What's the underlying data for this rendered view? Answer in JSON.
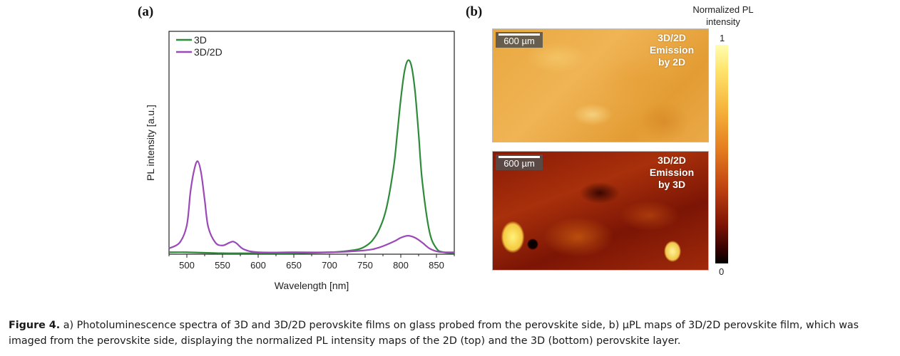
{
  "panel_a": {
    "label": "(a)",
    "chart_data": {
      "type": "line",
      "xlabel": "Wavelength [nm]",
      "ylabel": "PL intensity [a.u.]",
      "xlim": [
        475,
        875
      ],
      "ylim": [
        0,
        1.15
      ],
      "x_ticks": [
        500,
        550,
        600,
        650,
        700,
        750,
        800,
        850
      ],
      "y_ticks_shown": false,
      "grid": false,
      "legend": "top-left",
      "series": [
        {
          "name": "3D",
          "color": "#2e8b3a",
          "x": [
            475,
            500,
            550,
            600,
            650,
            700,
            720,
            740,
            750,
            760,
            770,
            780,
            790,
            795,
            800,
            805,
            810,
            815,
            820,
            825,
            830,
            840,
            850,
            860,
            875
          ],
          "y": [
            0.01,
            0.01,
            0.005,
            0.005,
            0.005,
            0.01,
            0.015,
            0.025,
            0.04,
            0.07,
            0.13,
            0.24,
            0.45,
            0.62,
            0.8,
            0.94,
            1.0,
            0.97,
            0.84,
            0.62,
            0.38,
            0.12,
            0.03,
            0.01,
            0.005
          ]
        },
        {
          "name": "3D/2D",
          "color": "#9b48b8",
          "x": [
            475,
            490,
            500,
            505,
            510,
            515,
            520,
            525,
            530,
            540,
            550,
            560,
            565,
            570,
            580,
            600,
            650,
            700,
            750,
            770,
            790,
            800,
            810,
            820,
            830,
            840,
            850,
            860,
            875
          ],
          "y": [
            0.03,
            0.06,
            0.15,
            0.32,
            0.43,
            0.48,
            0.42,
            0.28,
            0.14,
            0.06,
            0.045,
            0.06,
            0.065,
            0.055,
            0.025,
            0.01,
            0.01,
            0.01,
            0.02,
            0.035,
            0.065,
            0.085,
            0.095,
            0.085,
            0.06,
            0.03,
            0.015,
            0.01,
            0.01
          ]
        }
      ]
    }
  },
  "panel_b": {
    "label": "(b)",
    "top_map": {
      "scale_text": "600 µm",
      "label_lines": [
        "3D/2D",
        "Emission",
        "by 2D"
      ]
    },
    "bottom_map": {
      "scale_text": "600 µm",
      "label_lines": [
        "3D/2D",
        "Emission",
        "by 3D"
      ]
    },
    "colorbar": {
      "title_lines": [
        "Normalized PL",
        "intensity"
      ],
      "max_label": "1",
      "min_label": "0"
    }
  },
  "caption": {
    "lead": "Figure 4.",
    "text": " a) Photoluminescence spectra of 3D and 3D/2D perovskite films on glass probed from the perovskite side, b) µPL maps of 3D/2D perovskite film, which was imaged from the perovskite side, displaying the normalized PL intensity maps of the 2D (top) and the 3D (bottom) perovskite layer."
  }
}
